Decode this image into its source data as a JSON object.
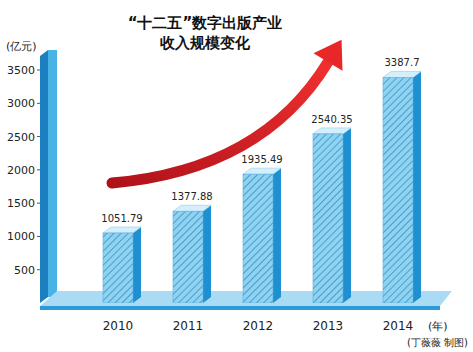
{
  "chart_data": {
    "type": "bar",
    "title": "“十二五”数字出版产业\n收入规模变化",
    "y_label": "(亿元)",
    "x_label": "(年)",
    "annotations": [
      "(丁薇薇 制图)"
    ],
    "categories": [
      "2010",
      "2011",
      "2012",
      "2013",
      "2014"
    ],
    "values": [
      1051.79,
      1377.88,
      1935.49,
      2540.35,
      3387.7
    ],
    "color": "#8fd3f2",
    "ylim": [
      0,
      3500
    ],
    "yticks": [
      500,
      1000,
      1500,
      2000,
      2500,
      3000,
      3500
    ],
    "grid": false,
    "data_labels": true
  }
}
